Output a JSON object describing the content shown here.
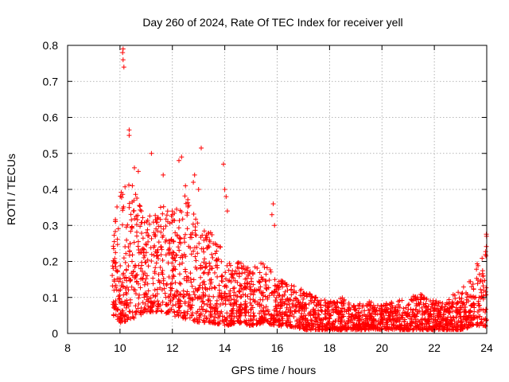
{
  "chart_data": {
    "type": "scatter",
    "title": "Day 260 of 2024, Rate Of TEC Index for receiver yell",
    "xlabel": "GPS time / hours",
    "ylabel": "ROTI / TECUs",
    "xlim": [
      8,
      24
    ],
    "ylim": [
      0,
      0.8
    ],
    "xticks": [
      8,
      10,
      12,
      14,
      16,
      18,
      20,
      22,
      24
    ],
    "yticks": [
      0,
      0.1,
      0.2,
      0.3,
      0.4,
      0.5,
      0.6,
      0.7,
      0.8
    ],
    "grid": true,
    "marker": "+",
    "color": "#ff0000",
    "series": [
      {
        "name": "ROTI",
        "points": [
          [
            10.1,
            0.78
          ],
          [
            10.12,
            0.76
          ],
          [
            10.15,
            0.74
          ],
          [
            10.12,
            0.79
          ],
          [
            10.35,
            0.565
          ],
          [
            10.35,
            0.55
          ],
          [
            11.2,
            0.5
          ],
          [
            12.35,
            0.49
          ],
          [
            13.1,
            0.515
          ],
          [
            12.85,
            0.44
          ],
          [
            13.95,
            0.47
          ],
          [
            14.0,
            0.4
          ],
          [
            14.05,
            0.38
          ],
          [
            14.1,
            0.34
          ],
          [
            11.65,
            0.44
          ],
          [
            12.25,
            0.48
          ],
          [
            12.8,
            0.42
          ],
          [
            15.85,
            0.36
          ],
          [
            15.8,
            0.33
          ],
          [
            15.9,
            0.3
          ],
          [
            13.0,
            0.4
          ],
          [
            12.5,
            0.41
          ],
          [
            10.55,
            0.46
          ],
          [
            10.7,
            0.45
          ]
        ]
      }
    ],
    "envelope": {
      "description": "dense band of points; per-hour typical low/high ROTI values",
      "hours": [
        9.7,
        10,
        10.5,
        11,
        11.5,
        12,
        12.5,
        13,
        13.5,
        14,
        14.5,
        15,
        15.5,
        16,
        16.5,
        17,
        17.5,
        18,
        18.5,
        19,
        19.5,
        20,
        20.5,
        21,
        21.5,
        22,
        22.5,
        23,
        23.5,
        24
      ],
      "low": [
        0.05,
        0.03,
        0.04,
        0.06,
        0.06,
        0.05,
        0.04,
        0.03,
        0.03,
        0.02,
        0.03,
        0.02,
        0.03,
        0.02,
        0.02,
        0.01,
        0.01,
        0.01,
        0.01,
        0.01,
        0.01,
        0.01,
        0.01,
        0.01,
        0.01,
        0.01,
        0.01,
        0.01,
        0.02,
        0.02
      ],
      "high": [
        0.3,
        0.4,
        0.42,
        0.32,
        0.36,
        0.34,
        0.4,
        0.3,
        0.28,
        0.22,
        0.2,
        0.18,
        0.2,
        0.16,
        0.14,
        0.12,
        0.1,
        0.09,
        0.1,
        0.08,
        0.09,
        0.08,
        0.09,
        0.1,
        0.11,
        0.09,
        0.1,
        0.12,
        0.16,
        0.3
      ]
    }
  }
}
